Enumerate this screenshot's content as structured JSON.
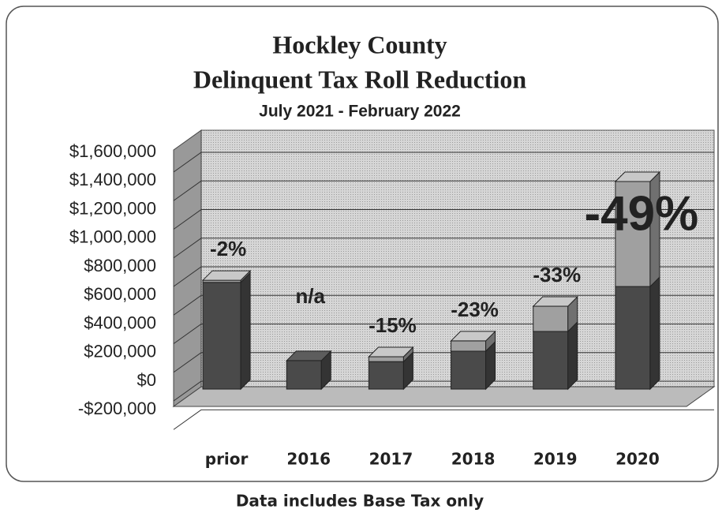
{
  "chart_data": {
    "type": "bar3d_stacked",
    "title": "Hockley County",
    "title2": "Delinquent Tax Roll Reduction",
    "subtitle": "July 2021 - February 2022",
    "caption": "Data includes Base Tax only",
    "categories": [
      "prior",
      "2016",
      "2017",
      "2018",
      "2019",
      "2020"
    ],
    "series": [
      {
        "color": "#4a4a4a",
        "values": [
          746000,
          199000,
          192000,
          265000,
          403000,
          717000
        ]
      },
      {
        "color": "#a0a0a0",
        "values": [
          15000,
          null,
          34000,
          72000,
          176000,
          734000
        ]
      }
    ],
    "bar_labels": [
      "-2%",
      "n/a",
      "-15%",
      "-23%",
      "-33%",
      "-49%"
    ],
    "ylim": [
      -200000,
      1600000
    ],
    "yticks": [
      {
        "value": -200000,
        "label": "-$200,000"
      },
      {
        "value": 0,
        "label": "$0"
      },
      {
        "value": 200000,
        "label": "$200,000"
      },
      {
        "value": 400000,
        "label": "$400,000"
      },
      {
        "value": 600000,
        "label": "$600,000"
      },
      {
        "value": 800000,
        "label": "$800,000"
      },
      {
        "value": 1000000,
        "label": "$1,000,000"
      },
      {
        "value": 1200000,
        "label": "$1,200,000"
      },
      {
        "value": 1400000,
        "label": "$1,400,000"
      },
      {
        "value": 1600000,
        "label": "$1,600,000"
      }
    ],
    "grid": true
  }
}
